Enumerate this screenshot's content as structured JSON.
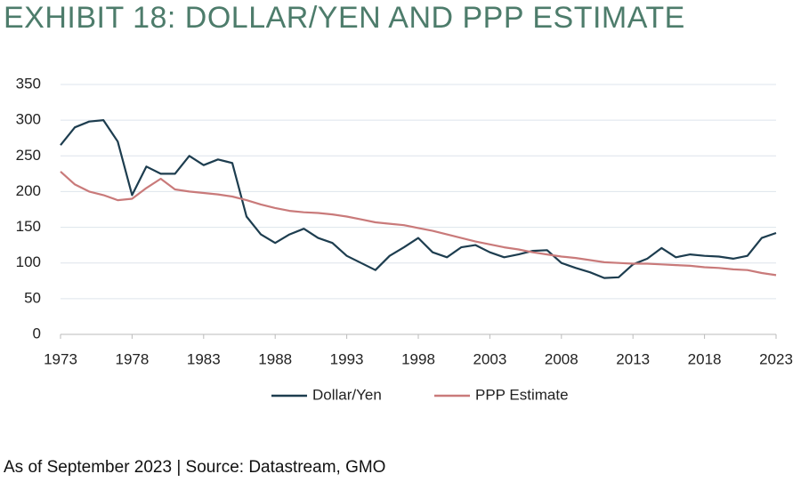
{
  "chart_data": {
    "type": "line",
    "title": "EXHIBIT 18: DOLLAR/YEN AND PPP ESTIMATE",
    "source": "As of September 2023 | Source: Datastream, GMO",
    "x": [
      1973,
      1974,
      1975,
      1976,
      1977,
      1978,
      1979,
      1980,
      1981,
      1982,
      1983,
      1984,
      1985,
      1986,
      1987,
      1988,
      1989,
      1990,
      1991,
      1992,
      1993,
      1994,
      1995,
      1996,
      1997,
      1998,
      1999,
      2000,
      2001,
      2002,
      2003,
      2004,
      2005,
      2006,
      2007,
      2008,
      2009,
      2010,
      2011,
      2012,
      2013,
      2014,
      2015,
      2016,
      2017,
      2018,
      2019,
      2020,
      2021,
      2022,
      2023
    ],
    "series": [
      {
        "name": "Dollar/Yen",
        "color": "#1d3d4f",
        "values": [
          265,
          290,
          298,
          300,
          270,
          195,
          235,
          225,
          225,
          250,
          237,
          245,
          240,
          165,
          140,
          128,
          140,
          148,
          135,
          128,
          110,
          100,
          90,
          110,
          122,
          135,
          115,
          108,
          122,
          125,
          115,
          108,
          112,
          117,
          118,
          100,
          93,
          87,
          79,
          80,
          98,
          106,
          121,
          108,
          112,
          110,
          109,
          106,
          110,
          135,
          142
        ]
      },
      {
        "name": "PPP Estimate",
        "color": "#c97a7a",
        "values": [
          228,
          210,
          200,
          195,
          188,
          190,
          205,
          218,
          203,
          200,
          198,
          196,
          193,
          188,
          182,
          177,
          173,
          171,
          170,
          168,
          165,
          161,
          157,
          155,
          153,
          149,
          145,
          140,
          135,
          130,
          126,
          122,
          119,
          115,
          112,
          109,
          107,
          104,
          101,
          100,
          99,
          99,
          98,
          97,
          96,
          94,
          93,
          91,
          90,
          86,
          83
        ]
      }
    ],
    "xlim": [
      1973,
      2023
    ],
    "xticks": [
      1973,
      1978,
      1983,
      1988,
      1993,
      1998,
      2003,
      2008,
      2013,
      2018,
      2023
    ],
    "ylim": [
      0,
      350
    ],
    "yticks": [
      0,
      50,
      100,
      150,
      200,
      250,
      300,
      350
    ],
    "grid": true,
    "legend": "bottom"
  }
}
